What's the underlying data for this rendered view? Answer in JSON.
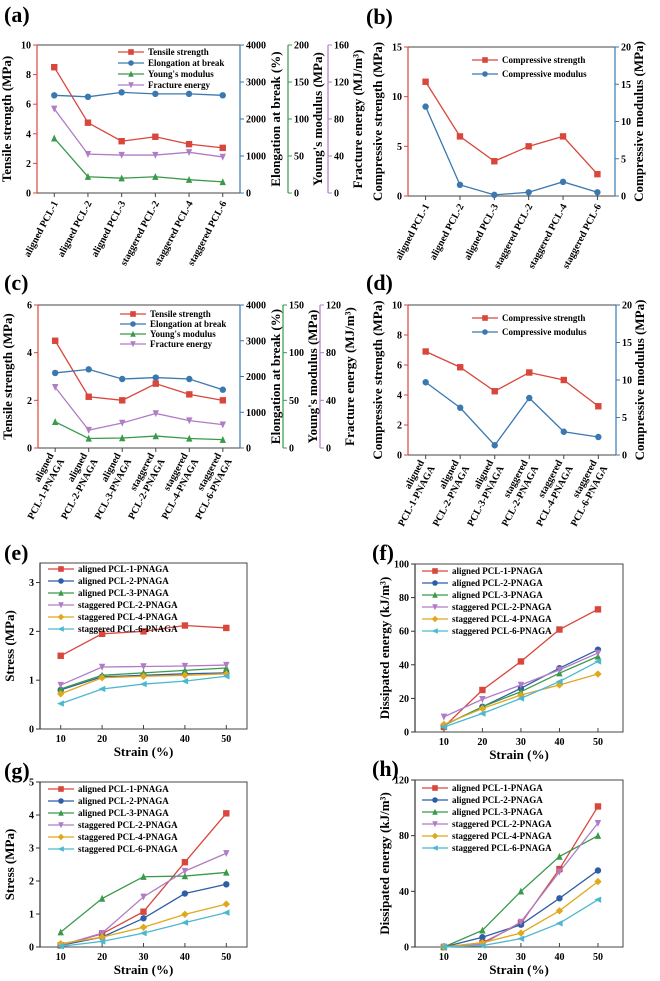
{
  "chart_data": [
    {
      "id": "a",
      "panel_label": "(a)",
      "type": "line",
      "categories": [
        "aligned PCL-1",
        "aligned PCL-2",
        "aligned PCL-3",
        "staggered PCL-2",
        "staggered PCL-4",
        "staggered PCL-6"
      ],
      "axes": [
        {
          "label": "Tensile strength  (MPa)",
          "range": [
            0,
            10
          ],
          "ticks": [
            0,
            2,
            4,
            6,
            8,
            10
          ],
          "color": "#d9463b"
        },
        {
          "label": "Elongation at break (%)",
          "range": [
            0,
            4000
          ],
          "ticks": [
            0,
            1000,
            2000,
            3000,
            4000
          ],
          "color": "#3a78b0"
        },
        {
          "label": "Young's modulus (MPa)",
          "range": [
            0,
            200
          ],
          "ticks": [
            0,
            50,
            100,
            150,
            200
          ],
          "color": "#3a9a4a"
        },
        {
          "label": "Fracture energy (MJ/m³)",
          "range": [
            0,
            160
          ],
          "ticks": [
            0,
            40,
            80,
            120,
            160
          ],
          "color": "#b07cc6"
        }
      ],
      "series": [
        {
          "name": "Tensile strength",
          "axis": 0,
          "color": "#d9463b",
          "marker": "square",
          "values": [
            8.5,
            4.75,
            3.5,
            3.8,
            3.3,
            3.05
          ]
        },
        {
          "name": "Elongation at break",
          "axis": 1,
          "color": "#3a78b0",
          "marker": "circle",
          "values": [
            2640,
            2600,
            2720,
            2680,
            2680,
            2640
          ]
        },
        {
          "name": "Young's modulus",
          "axis": 2,
          "color": "#3a9a4a",
          "marker": "tri-up",
          "values": [
            74,
            22,
            20,
            22,
            18,
            15
          ]
        },
        {
          "name": "Fracture energy",
          "axis": 3,
          "color": "#b07cc6",
          "marker": "tri-down",
          "values": [
            91,
            42,
            41,
            41,
            44,
            39
          ]
        }
      ]
    },
    {
      "id": "b",
      "panel_label": "(b)",
      "type": "line",
      "categories": [
        "aligned PCL-1",
        "aligned PCL-2",
        "aligned PCL-3",
        "staggered PCL-2",
        "staggered PCL-4",
        "staggered PCL-6"
      ],
      "axes": [
        {
          "label": "Compressive strength (MPa)",
          "range": [
            0,
            15
          ],
          "ticks": [
            0,
            5,
            10,
            15
          ],
          "color": "#d9463b"
        },
        {
          "label": "Compressive modulus (MPa)",
          "range": [
            0,
            20
          ],
          "ticks": [
            0,
            5,
            10,
            15,
            20
          ],
          "color": "#3a78b0"
        }
      ],
      "series": [
        {
          "name": "Compressive strength",
          "axis": 0,
          "color": "#d9463b",
          "marker": "square",
          "values": [
            11.5,
            6.0,
            3.5,
            5.0,
            6.0,
            2.2
          ]
        },
        {
          "name": "Compressive modulus",
          "axis": 1,
          "color": "#3a78b0",
          "marker": "circle",
          "values": [
            12,
            1.5,
            0.15,
            0.5,
            1.9,
            0.5
          ]
        }
      ]
    },
    {
      "id": "c",
      "panel_label": "(c)",
      "type": "line",
      "categories": [
        "aligned|PCL-1-PNAGA",
        "aligned|PCL-2-PNAGA",
        "aligned|PCL-3-PNAGA",
        "staggered|PCL-2-PNAGA",
        "staggered|PCL-4-PNAGA",
        "staggered|PCL-6-PNAGA"
      ],
      "axes": [
        {
          "label": "Tensile strength (MPa)",
          "range": [
            0,
            6
          ],
          "ticks": [
            0,
            2,
            4,
            6
          ],
          "color": "#d9463b"
        },
        {
          "label": "Elongation at break (%)",
          "range": [
            0,
            4000
          ],
          "ticks": [
            0,
            1000,
            2000,
            3000,
            4000
          ],
          "color": "#3a78b0"
        },
        {
          "label": "Young's modulus (MPa)",
          "range": [
            0,
            150
          ],
          "ticks": [
            0,
            50,
            100,
            150
          ],
          "color": "#3a9a4a"
        },
        {
          "label": "Fracture energy (MJ/m³)",
          "range": [
            0,
            120
          ],
          "ticks": [
            0,
            40,
            80,
            120
          ],
          "color": "#b07cc6"
        }
      ],
      "series": [
        {
          "name": "Tensile strength",
          "axis": 0,
          "color": "#d9463b",
          "marker": "square",
          "values": [
            4.5,
            2.15,
            2.0,
            2.7,
            2.25,
            2.0
          ]
        },
        {
          "name": "Elongation at break",
          "axis": 1,
          "color": "#3a78b0",
          "marker": "circle",
          "values": [
            2100,
            2200,
            1930,
            1970,
            1930,
            1630
          ]
        },
        {
          "name": "Young's modulus",
          "axis": 2,
          "color": "#3a9a4a",
          "marker": "tri-up",
          "values": [
            27.5,
            10,
            10.5,
            12.5,
            10,
            8.75
          ]
        },
        {
          "name": "Fracture energy",
          "axis": 3,
          "color": "#b07cc6",
          "marker": "tri-down",
          "values": [
            51,
            15,
            21,
            29,
            23,
            19.6
          ]
        }
      ]
    },
    {
      "id": "d",
      "panel_label": "(d)",
      "type": "line",
      "categories": [
        "aligned|PCL-1-PNAGA",
        "aligned|PCL-2-PNAGA",
        "aligned|PCL-3-PNAGA",
        "staggered|PCL-2-PNAGA",
        "staggered|PCL-4-PNAGA",
        "staggered|PCL-6-PNAGA"
      ],
      "axes": [
        {
          "label": "Compressive strength (MPa)",
          "range": [
            0,
            10
          ],
          "ticks": [
            0,
            2,
            4,
            6,
            8,
            10
          ],
          "color": "#d9463b"
        },
        {
          "label": "Compressive modulus (MPa)",
          "range": [
            0,
            20
          ],
          "ticks": [
            0,
            5,
            10,
            15,
            20
          ],
          "color": "#3a78b0"
        }
      ],
      "series": [
        {
          "name": "Compressive strength",
          "axis": 0,
          "color": "#d9463b",
          "marker": "square",
          "values": [
            6.9,
            5.85,
            4.25,
            5.5,
            5.0,
            3.25
          ]
        },
        {
          "name": "Compressive modulus",
          "axis": 1,
          "color": "#3a78b0",
          "marker": "circle",
          "values": [
            9.7,
            6.3,
            1.3,
            7.6,
            3.1,
            2.4
          ]
        }
      ]
    },
    {
      "id": "e",
      "panel_label": "(e)",
      "type": "line",
      "xlabel": "Strain (%)",
      "x": [
        10,
        20,
        30,
        40,
        50
      ],
      "xlim": [
        5,
        55
      ],
      "xticks": [
        10,
        20,
        30,
        40,
        50
      ],
      "axes": [
        {
          "label": "Stress (MPa)",
          "range": [
            0,
            3.4
          ],
          "ticks": [
            0,
            1,
            2,
            3
          ],
          "color": "#333333"
        }
      ],
      "series": [
        {
          "name": "aligned PCL-1-PNAGA",
          "axis": 0,
          "color": "#d9463b",
          "marker": "square",
          "values": [
            1.5,
            1.95,
            2.0,
            2.12,
            2.07
          ]
        },
        {
          "name": "aligned PCL-2-PNAGA",
          "axis": 0,
          "color": "#2f5ea8",
          "marker": "circle",
          "values": [
            0.8,
            1.07,
            1.1,
            1.13,
            1.15
          ]
        },
        {
          "name": "aligned PCL-3-PNAGA",
          "axis": 0,
          "color": "#3a9a4a",
          "marker": "tri-up",
          "values": [
            0.82,
            1.1,
            1.15,
            1.2,
            1.25
          ]
        },
        {
          "name": "staggered PCL-2-PNAGA",
          "axis": 0,
          "color": "#b07cc6",
          "marker": "tri-down",
          "values": [
            0.9,
            1.27,
            1.28,
            1.29,
            1.31
          ]
        },
        {
          "name": "staggered PCL-4-PNAGA",
          "axis": 0,
          "color": "#e0a81c",
          "marker": "diamond",
          "values": [
            0.72,
            1.05,
            1.08,
            1.1,
            1.13
          ]
        },
        {
          "name": "staggered PCL-6-PNAGA",
          "axis": 0,
          "color": "#4cb8d0",
          "marker": "tri-left",
          "values": [
            0.52,
            0.82,
            0.92,
            0.98,
            1.08
          ]
        }
      ]
    },
    {
      "id": "f",
      "panel_label": "(f)",
      "type": "line",
      "xlabel": "Strain (%)",
      "x": [
        10,
        20,
        30,
        40,
        50
      ],
      "xlim": [
        2.5,
        56.5
      ],
      "xticks": [
        10,
        20,
        30,
        40,
        50
      ],
      "axes": [
        {
          "label": "Dissipated energy (kJ/m³)",
          "range": [
            0,
            100
          ],
          "ticks": [
            0,
            20,
            40,
            60,
            80,
            100
          ],
          "color": "#333333"
        }
      ],
      "series": [
        {
          "name": "aligned PCL-1-PNAGA",
          "axis": 0,
          "color": "#d9463b",
          "marker": "square",
          "values": [
            3,
            25,
            42,
            61,
            73
          ]
        },
        {
          "name": "aligned PCL-2-PNAGA",
          "axis": 0,
          "color": "#2f5ea8",
          "marker": "circle",
          "values": [
            4,
            15,
            26,
            38,
            49
          ]
        },
        {
          "name": "aligned PCL-3-PNAGA",
          "axis": 0,
          "color": "#3a9a4a",
          "marker": "tri-up",
          "values": [
            4,
            15,
            24,
            35,
            45
          ]
        },
        {
          "name": "staggered PCL-2-PNAGA",
          "axis": 0,
          "color": "#b07cc6",
          "marker": "tri-down",
          "values": [
            9,
            19.5,
            28,
            37,
            47
          ]
        },
        {
          "name": "staggered PCL-4-PNAGA",
          "axis": 0,
          "color": "#e0a81c",
          "marker": "diamond",
          "values": [
            4.5,
            14,
            22,
            28,
            34.5
          ]
        },
        {
          "name": "staggered PCL-6-PNAGA",
          "axis": 0,
          "color": "#4cb8d0",
          "marker": "tri-left",
          "values": [
            3,
            11,
            20,
            30,
            42
          ]
        }
      ]
    },
    {
      "id": "g",
      "panel_label": "(g)",
      "type": "line",
      "xlabel": "Strain (%)",
      "x": [
        10,
        20,
        30,
        40,
        50
      ],
      "xlim": [
        5,
        55
      ],
      "xticks": [
        10,
        20,
        30,
        40,
        50
      ],
      "axes": [
        {
          "label": "Stress (MPa)",
          "range": [
            0,
            5
          ],
          "ticks": [
            0,
            1,
            2,
            3,
            4,
            5
          ],
          "color": "#333333"
        }
      ],
      "series": [
        {
          "name": "aligned PCL-1-PNAGA",
          "axis": 0,
          "color": "#d9463b",
          "marker": "square",
          "values": [
            0.05,
            0.4,
            1.07,
            2.57,
            4.05
          ]
        },
        {
          "name": "aligned PCL-2-PNAGA",
          "axis": 0,
          "color": "#2f5ea8",
          "marker": "circle",
          "values": [
            0.05,
            0.3,
            0.87,
            1.62,
            1.9
          ]
        },
        {
          "name": "aligned PCL-3-PNAGA",
          "axis": 0,
          "color": "#3a9a4a",
          "marker": "tri-up",
          "values": [
            0.45,
            1.47,
            2.13,
            2.15,
            2.26
          ]
        },
        {
          "name": "staggered PCL-2-PNAGA",
          "axis": 0,
          "color": "#b07cc6",
          "marker": "tri-down",
          "values": [
            0.05,
            0.42,
            1.52,
            2.3,
            2.84
          ]
        },
        {
          "name": "staggered PCL-4-PNAGA",
          "axis": 0,
          "color": "#e0a81c",
          "marker": "diamond",
          "values": [
            0.1,
            0.3,
            0.6,
            0.99,
            1.3
          ]
        },
        {
          "name": "staggered PCL-6-PNAGA",
          "axis": 0,
          "color": "#4cb8d0",
          "marker": "tri-left",
          "values": [
            0.02,
            0.17,
            0.42,
            0.74,
            1.04
          ]
        }
      ]
    },
    {
      "id": "h",
      "panel_label": "(h)",
      "type": "line",
      "xlabel": "Strain (%)",
      "x": [
        10,
        20,
        30,
        40,
        50
      ],
      "xlim": [
        2.5,
        56.5
      ],
      "xticks": [
        10,
        20,
        30,
        40,
        50
      ],
      "axes": [
        {
          "label": "Dissipated energy (kJ/m³)",
          "range": [
            0,
            120
          ],
          "ticks": [
            0,
            40,
            80,
            120
          ],
          "color": "#333333"
        }
      ],
      "series": [
        {
          "name": "aligned PCL-1-PNAGA",
          "axis": 0,
          "color": "#d9463b",
          "marker": "square",
          "values": [
            0,
            3,
            17,
            56,
            101
          ]
        },
        {
          "name": "aligned PCL-2-PNAGA",
          "axis": 0,
          "color": "#2f5ea8",
          "marker": "circle",
          "values": [
            0,
            7,
            16,
            35,
            55
          ]
        },
        {
          "name": "aligned PCL-3-PNAGA",
          "axis": 0,
          "color": "#3a9a4a",
          "marker": "tri-up",
          "values": [
            0,
            12,
            40,
            65,
            80
          ]
        },
        {
          "name": "staggered PCL-2-PNAGA",
          "axis": 0,
          "color": "#b07cc6",
          "marker": "tri-down",
          "values": [
            0,
            2,
            18,
            54,
            89
          ]
        },
        {
          "name": "staggered PCL-4-PNAGA",
          "axis": 0,
          "color": "#e0a81c",
          "marker": "diamond",
          "values": [
            0,
            3,
            10,
            26,
            47
          ]
        },
        {
          "name": "staggered PCL-6-PNAGA",
          "axis": 0,
          "color": "#4cb8d0",
          "marker": "tri-left",
          "values": [
            0,
            1,
            6,
            17,
            34
          ]
        }
      ]
    }
  ]
}
